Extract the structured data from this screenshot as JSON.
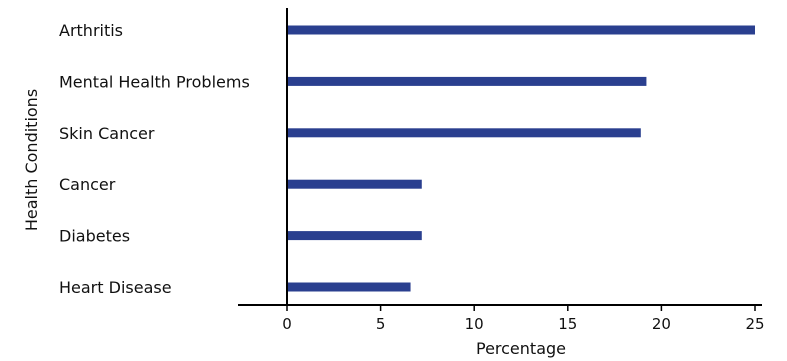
{
  "chart_data": {
    "type": "bar",
    "orientation": "horizontal",
    "categories": [
      "Arthritis",
      "Mental Health Problems",
      "Skin Cancer",
      "Cancer",
      "Diabetes",
      "Heart Disease"
    ],
    "values": [
      25.0,
      19.2,
      18.9,
      7.2,
      7.2,
      6.6
    ],
    "xlabel": "Percentage",
    "ylabel": "Health Conditions",
    "xlim": [
      0,
      25
    ],
    "xticks": [
      0,
      5,
      10,
      15,
      20,
      25
    ],
    "grid": false,
    "bar_color": "#2a3f8f"
  }
}
